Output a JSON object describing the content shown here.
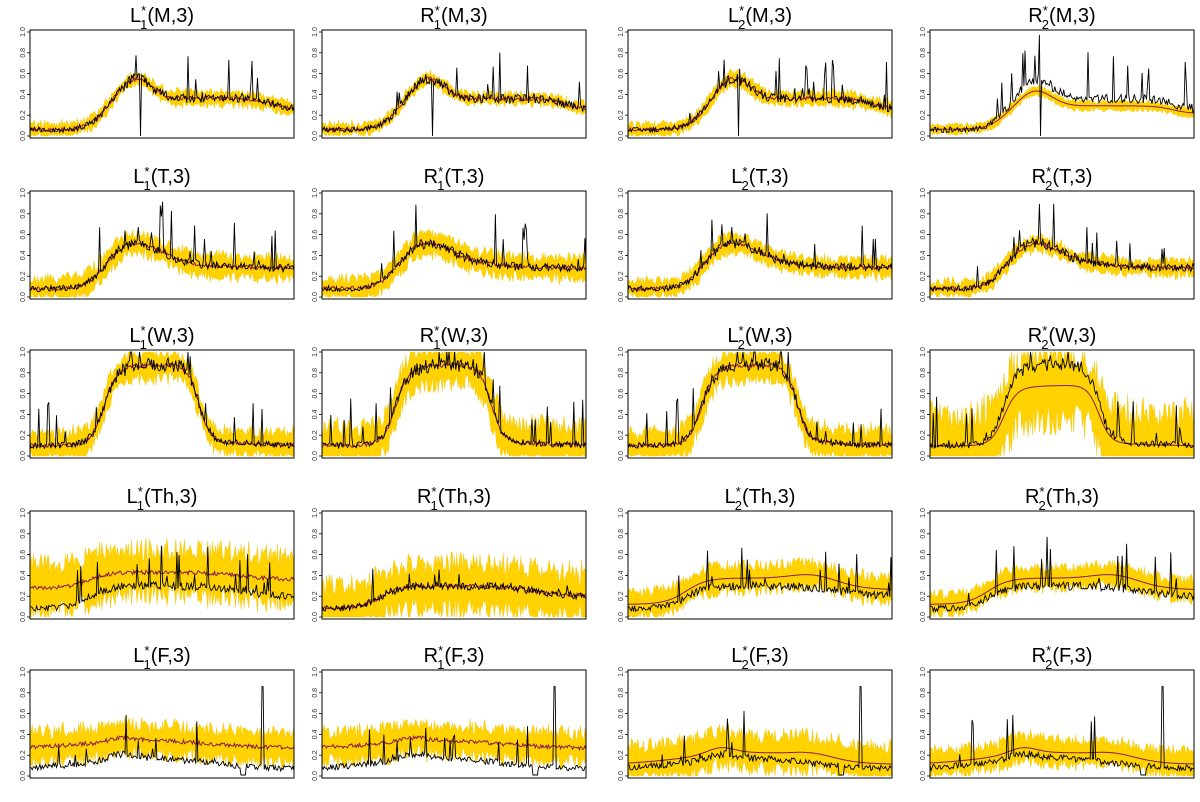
{
  "chart_data": {
    "type": "line",
    "layout": "5x4 small multiples",
    "yticks": [
      "0.0",
      "0.2",
      "0.4",
      "0.6",
      "0.8",
      "1.0"
    ],
    "ylim": [
      0,
      1
    ],
    "colors": {
      "band": "#FFD200",
      "median": "#8B1A4A",
      "observed": "#000000"
    },
    "series_styles": [
      {
        "role": "interval",
        "color": "#FFD200"
      },
      {
        "role": "median",
        "color": "#8B1A4A"
      },
      {
        "role": "observed",
        "color": "#000000"
      }
    ],
    "rows": [
      {
        "day": "M",
        "panels": [
          {
            "title": {
              "base": "L",
              "sub": "1",
              "arg": "(M,3)"
            },
            "shape": "M",
            "band": 0.06,
            "fit": "good"
          },
          {
            "title": {
              "base": "R",
              "sub": "1",
              "arg": "(M,3)"
            },
            "shape": "M",
            "band": 0.05,
            "fit": "good"
          },
          {
            "title": {
              "base": "L",
              "sub": "2",
              "arg": "(M,3)"
            },
            "shape": "M",
            "band": 0.06,
            "fit": "good"
          },
          {
            "title": {
              "base": "R",
              "sub": "2",
              "arg": "(M,3)"
            },
            "shape": "M",
            "band": 0.04,
            "fit": "low"
          }
        ]
      },
      {
        "day": "T",
        "panels": [
          {
            "title": {
              "base": "L",
              "sub": "1",
              "arg": "(T,3)"
            },
            "shape": "T",
            "band": 0.1,
            "fit": "good"
          },
          {
            "title": {
              "base": "R",
              "sub": "1",
              "arg": "(T,3)"
            },
            "shape": "T",
            "band": 0.1,
            "fit": "good"
          },
          {
            "title": {
              "base": "L",
              "sub": "2",
              "arg": "(T,3)"
            },
            "shape": "T",
            "band": 0.08,
            "fit": "good"
          },
          {
            "title": {
              "base": "R",
              "sub": "2",
              "arg": "(T,3)"
            },
            "shape": "T",
            "band": 0.07,
            "fit": "good"
          }
        ]
      },
      {
        "day": "W",
        "panels": [
          {
            "title": {
              "base": "L",
              "sub": "1",
              "arg": "(W,3)"
            },
            "shape": "W",
            "band": 0.12,
            "fit": "good"
          },
          {
            "title": {
              "base": "R",
              "sub": "1",
              "arg": "(W,3)"
            },
            "shape": "W",
            "band": 0.18,
            "fit": "good"
          },
          {
            "title": {
              "base": "L",
              "sub": "2",
              "arg": "(W,3)"
            },
            "shape": "W",
            "band": 0.14,
            "fit": "good"
          },
          {
            "title": {
              "base": "R",
              "sub": "2",
              "arg": "(W,3)"
            },
            "shape": "W",
            "band": 0.32,
            "fit": "low"
          }
        ]
      },
      {
        "day": "Th",
        "panels": [
          {
            "title": {
              "base": "L",
              "sub": "1",
              "arg": "(Th,3)"
            },
            "shape": "Th",
            "band": 0.22,
            "fit": "high"
          },
          {
            "title": {
              "base": "R",
              "sub": "1",
              "arg": "(Th,3)"
            },
            "shape": "Th",
            "band": 0.22,
            "fit": "good"
          },
          {
            "title": {
              "base": "L",
              "sub": "2",
              "arg": "(Th,3)"
            },
            "shape": "Th",
            "band": 0.12,
            "fit": "smooth"
          },
          {
            "title": {
              "base": "R",
              "sub": "2",
              "arg": "(Th,3)"
            },
            "shape": "Th",
            "band": 0.1,
            "fit": "smooth"
          }
        ]
      },
      {
        "day": "F",
        "panels": [
          {
            "title": {
              "base": "L",
              "sub": "1",
              "arg": "(F,3)"
            },
            "shape": "F",
            "band": 0.14,
            "fit": "high"
          },
          {
            "title": {
              "base": "R",
              "sub": "1",
              "arg": "(F,3)"
            },
            "shape": "F",
            "band": 0.14,
            "fit": "high"
          },
          {
            "title": {
              "base": "L",
              "sub": "2",
              "arg": "(F,3)"
            },
            "shape": "F",
            "band": 0.16,
            "fit": "smooth"
          },
          {
            "title": {
              "base": "R",
              "sub": "2",
              "arg": "(F,3)"
            },
            "shape": "F",
            "band": 0.12,
            "fit": "smooth"
          }
        ]
      }
    ]
  }
}
